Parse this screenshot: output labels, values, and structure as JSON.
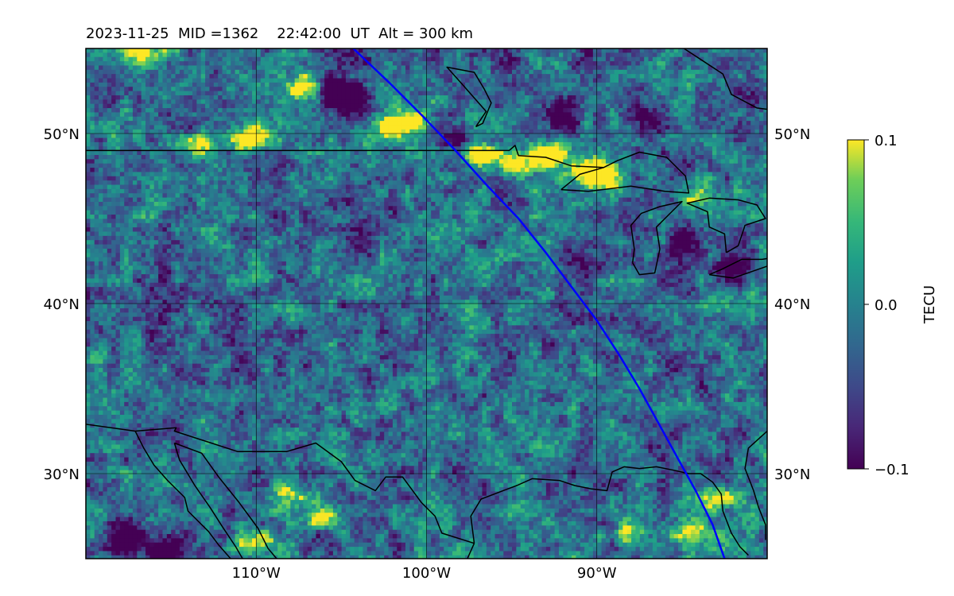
{
  "title": "2023-11-25  MID =1362    22:42:00  UT  Alt = 300 km",
  "map": {
    "lon_range": [
      -120,
      -80
    ],
    "lat_range": [
      25,
      55
    ],
    "gridlines": true,
    "grid_lons": [
      -110,
      -100,
      -90
    ],
    "grid_lats": [
      30,
      40,
      50
    ],
    "lon_tick_labels": [
      "110°W",
      "100°W",
      "90°W"
    ],
    "lat_tick_labels": [
      "30°N",
      "40°N",
      "50°N"
    ],
    "colormap": "viridis",
    "enhancement_regions": [
      {
        "lon": -97,
        "lat": 48.8,
        "value": 0.1
      },
      {
        "lon": -94.8,
        "lat": 48.2,
        "value": 0.1
      },
      {
        "lon": -92.8,
        "lat": 48.8,
        "value": 0.1
      },
      {
        "lon": -89.5,
        "lat": 47.2,
        "value": 0.1
      },
      {
        "lon": -90.6,
        "lat": 47.8,
        "value": 0.1
      },
      {
        "lon": -100.8,
        "lat": 50.8,
        "value": 0.1
      },
      {
        "lon": -102.4,
        "lat": 50.4,
        "value": 0.09
      },
      {
        "lon": -107.3,
        "lat": 52.6,
        "value": 0.1
      },
      {
        "lon": -110.5,
        "lat": 49.7,
        "value": 0.1
      },
      {
        "lon": -113.4,
        "lat": 49.2,
        "value": 0.08
      },
      {
        "lon": -116.8,
        "lat": 54.7,
        "value": 0.09
      },
      {
        "lon": -110.2,
        "lat": 25.9,
        "value": 0.1
      },
      {
        "lon": -108,
        "lat": 28.8,
        "value": 0.08
      },
      {
        "lon": -106.2,
        "lat": 27.6,
        "value": 0.09
      },
      {
        "lon": -84,
        "lat": 46.3,
        "value": 0.08
      },
      {
        "lon": -87.8,
        "lat": 26.5,
        "value": 0.07
      },
      {
        "lon": -84.6,
        "lat": 26.6,
        "value": 0.07
      },
      {
        "lon": -83,
        "lat": 28.5,
        "value": 0.07
      },
      {
        "lon": -91.6,
        "lat": 24.8,
        "value": 0.06
      }
    ],
    "depletion_regions": [
      {
        "lon": -105.8,
        "lat": 52.4,
        "value": -0.1
      },
      {
        "lon": -104.2,
        "lat": 52,
        "value": -0.1
      },
      {
        "lon": -92,
        "lat": 51,
        "value": -0.09
      },
      {
        "lon": -85,
        "lat": 43.6,
        "value": -0.09
      },
      {
        "lon": -82,
        "lat": 41.9,
        "value": -0.08
      },
      {
        "lon": -98,
        "lat": 49.8,
        "value": -0.08
      },
      {
        "lon": -117.5,
        "lat": 26.2,
        "value": -0.1
      },
      {
        "lon": -115,
        "lat": 25.5,
        "value": -0.09
      },
      {
        "lon": -91,
        "lat": 42.5,
        "value": -0.07
      },
      {
        "lon": -87,
        "lat": 50.5,
        "value": -0.08
      }
    ],
    "terminator_line": {
      "color": "#0000ff",
      "points": [
        [
          -104.3,
          55
        ],
        [
          -102.2,
          53
        ],
        [
          -100.2,
          51
        ],
        [
          -98.3,
          49
        ],
        [
          -96.5,
          47
        ],
        [
          -94.6,
          45
        ],
        [
          -93,
          43
        ],
        [
          -91.5,
          41
        ],
        [
          -90,
          39
        ],
        [
          -88.7,
          37
        ],
        [
          -87.5,
          35
        ],
        [
          -86.4,
          33
        ],
        [
          -85.3,
          31
        ],
        [
          -84.2,
          29
        ],
        [
          -83.2,
          27
        ],
        [
          -82.5,
          25
        ]
      ]
    },
    "borders": [
      {
        "kind": "us-canada-border",
        "points": [
          [
            -120,
            49
          ],
          [
            -95.15,
            49
          ],
          [
            -94.8,
            49.3
          ],
          [
            -94.6,
            48.7
          ],
          [
            -93,
            48.6
          ],
          [
            -91.5,
            48.1
          ],
          [
            -89.6,
            48
          ]
        ]
      },
      {
        "kind": "hudson-bay-coast",
        "points": [
          [
            -94.7,
            58.8
          ],
          [
            -93.5,
            57.3
          ],
          [
            -93.2,
            56.5
          ],
          [
            -92,
            55.8
          ],
          [
            -90.2,
            55.1
          ],
          [
            -87.5,
            55.8
          ],
          [
            -85.5,
            55.4
          ],
          [
            -82.6,
            53.5
          ],
          [
            -82.1,
            52.3
          ],
          [
            -80.6,
            51.5
          ],
          [
            -79,
            51.3
          ]
        ]
      },
      {
        "kind": "lake-winnipeg",
        "points": [
          [
            -97.1,
            50.4
          ],
          [
            -96.5,
            51.3
          ],
          [
            -98,
            53
          ],
          [
            -98.8,
            53.9
          ],
          [
            -97.2,
            53.6
          ],
          [
            -96.6,
            52.6
          ],
          [
            -96.2,
            51.8
          ],
          [
            -96.7,
            50.6
          ],
          [
            -97.1,
            50.4
          ]
        ]
      },
      {
        "kind": "lake-superior",
        "points": [
          [
            -92.1,
            46.7
          ],
          [
            -90.5,
            46.6
          ],
          [
            -88,
            46.9
          ],
          [
            -86,
            46.6
          ],
          [
            -84.6,
            46.5
          ],
          [
            -84.8,
            47.5
          ],
          [
            -85.9,
            48.6
          ],
          [
            -87.5,
            48.9
          ],
          [
            -88.8,
            48.4
          ],
          [
            -89.6,
            48
          ],
          [
            -91,
            47.6
          ],
          [
            -92.1,
            46.7
          ]
        ]
      },
      {
        "kind": "lake-michigan",
        "points": [
          [
            -87.9,
            42.4
          ],
          [
            -87.5,
            41.7
          ],
          [
            -86.6,
            41.8
          ],
          [
            -86.3,
            43.2
          ],
          [
            -86.5,
            44.5
          ],
          [
            -85.6,
            45.4
          ],
          [
            -85,
            46
          ],
          [
            -86.3,
            45.7
          ],
          [
            -87.4,
            45.3
          ],
          [
            -88,
            44.6
          ],
          [
            -87.8,
            43.2
          ],
          [
            -87.9,
            42.4
          ]
        ]
      },
      {
        "kind": "lake-huron",
        "points": [
          [
            -82.4,
            43
          ],
          [
            -82.5,
            44.1
          ],
          [
            -83.4,
            44.5
          ],
          [
            -83.5,
            45.4
          ],
          [
            -84.7,
            45.9
          ],
          [
            -83.4,
            46.2
          ],
          [
            -81.7,
            46.1
          ],
          [
            -80.6,
            45.8
          ],
          [
            -80.1,
            45
          ],
          [
            -81.3,
            44.6
          ],
          [
            -81.7,
            43.4
          ],
          [
            -82.4,
            43
          ]
        ]
      },
      {
        "kind": "lake-erie",
        "points": [
          [
            -83.4,
            41.7
          ],
          [
            -82,
            41.5
          ],
          [
            -80,
            42.2
          ],
          [
            -79,
            42.8
          ],
          [
            -80.3,
            42.6
          ],
          [
            -81.5,
            42.6
          ],
          [
            -82.7,
            42
          ],
          [
            -83.4,
            41.7
          ]
        ]
      },
      {
        "kind": "mexico-border",
        "points": [
          [
            -120,
            32.9
          ],
          [
            -117.1,
            32.5
          ],
          [
            -114.7,
            32.7
          ],
          [
            -114.8,
            32.5
          ],
          [
            -111.1,
            31.3
          ],
          [
            -108.2,
            31.3
          ],
          [
            -106.5,
            31.8
          ],
          [
            -105,
            30.7
          ],
          [
            -104.2,
            29.6
          ],
          [
            -103,
            29
          ],
          [
            -102.4,
            29.8
          ],
          [
            -101.4,
            29.8
          ],
          [
            -100.3,
            28.3
          ],
          [
            -99.5,
            27.5
          ],
          [
            -99.1,
            26.5
          ],
          [
            -97.2,
            25.9
          ]
        ]
      },
      {
        "kind": "gulf-coast",
        "points": [
          [
            -97.2,
            25.9
          ],
          [
            -97.4,
            27.5
          ],
          [
            -96.8,
            28.5
          ],
          [
            -95.5,
            29
          ],
          [
            -94.7,
            29.3
          ],
          [
            -93.8,
            29.7
          ],
          [
            -92.2,
            29.6
          ],
          [
            -91.3,
            29.3
          ],
          [
            -90.3,
            29.1
          ],
          [
            -89.4,
            29
          ],
          [
            -89.1,
            30.1
          ],
          [
            -88.4,
            30.4
          ],
          [
            -87.5,
            30.3
          ],
          [
            -86.5,
            30.4
          ],
          [
            -85.5,
            30.2
          ],
          [
            -84.6,
            30
          ],
          [
            -83.9,
            30
          ],
          [
            -83.2,
            29.5
          ],
          [
            -82.7,
            28.8
          ],
          [
            -82.6,
            27.8
          ],
          [
            -82.1,
            26.5
          ],
          [
            -81.6,
            25.7
          ],
          [
            -81.1,
            25.2
          ]
        ]
      },
      {
        "kind": "atlantic-coast",
        "points": [
          [
            -80.1,
            26.1
          ],
          [
            -80.1,
            27
          ],
          [
            -80.5,
            28
          ],
          [
            -80.8,
            29
          ],
          [
            -81.3,
            30.3
          ],
          [
            -81.1,
            31.5
          ],
          [
            -80,
            32.5
          ]
        ]
      },
      {
        "kind": "baja-west-coast",
        "points": [
          [
            -117.1,
            32.5
          ],
          [
            -116.6,
            31.5
          ],
          [
            -116,
            30.5
          ],
          [
            -115.2,
            29.6
          ],
          [
            -114.2,
            28.6
          ],
          [
            -114,
            27.8
          ],
          [
            -112.8,
            26.6
          ],
          [
            -112.2,
            25.8
          ],
          [
            -111.5,
            25
          ]
        ]
      },
      {
        "kind": "gulf-of-california-west",
        "points": [
          [
            -114.8,
            31.8
          ],
          [
            -114.5,
            30.8
          ],
          [
            -113.6,
            29.3
          ],
          [
            -112.7,
            28
          ],
          [
            -112,
            26.9
          ],
          [
            -111.2,
            25.7
          ],
          [
            -110.8,
            25
          ]
        ]
      },
      {
        "kind": "gulf-of-california-east",
        "points": [
          [
            -114.8,
            31.8
          ],
          [
            -113.2,
            31.2
          ],
          [
            -112.2,
            29.8
          ],
          [
            -111,
            28.3
          ],
          [
            -109.9,
            26.8
          ],
          [
            -109.3,
            25.6
          ],
          [
            -108.8,
            25
          ]
        ]
      },
      {
        "kind": "mexico-gulf-coast",
        "points": [
          [
            -97.2,
            25.9
          ],
          [
            -97.6,
            25
          ]
        ]
      }
    ]
  },
  "colorbar": {
    "label": "TECU",
    "vmin": -0.1,
    "vmax": 0.1,
    "tick_labels": [
      "0.1",
      "0.0",
      "−0.1"
    ]
  }
}
